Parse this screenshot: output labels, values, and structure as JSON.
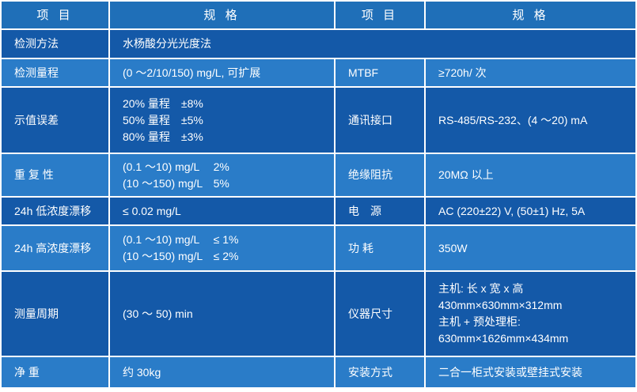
{
  "header": {
    "col1": "项 目",
    "col2": "规 格",
    "col3": "项 目",
    "col4": "规 格"
  },
  "rows": [
    {
      "item1": "检测方法",
      "spec1": [
        "水杨酸分光光度法"
      ]
    },
    {
      "item1": "检测量程",
      "spec1": [
        "(0 ～2/10/150) mg/L, 可扩展"
      ],
      "item2": "MTBF",
      "spec2": [
        "≥720h/ 次"
      ]
    },
    {
      "item1": "示值误差",
      "spec1": [
        "20% 量程　±8%",
        "50% 量程　±5%",
        "80% 量程　±3%"
      ],
      "item2": "通讯接口",
      "spec2": [
        "RS-485/RS-232、(4 ～20) mA"
      ]
    },
    {
      "item1": "重 复 性",
      "spec1": [
        "(0.1 ～10) mg/L　 2%",
        "(10 ～150) mg/L　5%"
      ],
      "item2": "绝缘阻抗",
      "spec2": [
        "20MΩ 以上"
      ]
    },
    {
      "item1": "24h 低浓度漂移",
      "spec1": [
        "≤ 0.02 mg/L"
      ],
      "item2": "电　源",
      "spec2": [
        "AC (220±22) V, (50±1) Hz, 5A"
      ]
    },
    {
      "item1": "24h 高浓度漂移",
      "spec1": [
        "(0.1 ～10) mg/L　 ≤ 1%",
        "(10 ～150) mg/L　≤ 2%"
      ],
      "item2": "功 耗",
      "spec2": [
        "350W"
      ]
    },
    {
      "item1": "测量周期",
      "spec1": [
        "(30 ～ 50) min"
      ],
      "item2": "仪器尺寸",
      "spec2": [
        "主机: 长 x 宽 x 高",
        "430mm×630mm×312mm",
        "主机 + 预处理柜:",
        "630mm×1626mm×434mm"
      ]
    },
    {
      "item1": "净 重",
      "spec1": [
        "约 30kg"
      ],
      "item2": "安装方式",
      "spec2": [
        "二合一柜式安装或壁挂式安装"
      ]
    }
  ]
}
